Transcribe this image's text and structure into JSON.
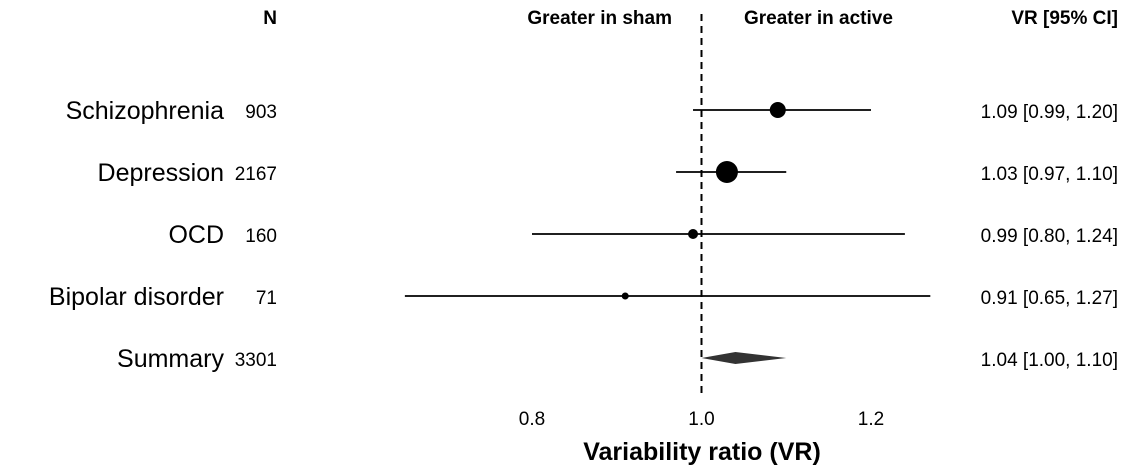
{
  "chart_data": {
    "type": "forest",
    "headers": {
      "n": "N",
      "left_direction": "Greater in sham",
      "right_direction": "Greater in active",
      "estimate": "VR [95% CI]"
    },
    "xlabel": "Variability ratio (VR)",
    "xlim": [
      0.65,
      1.27
    ],
    "xticks": [
      "0.8",
      "1.0",
      "1.2"
    ],
    "reference_line": 1.0,
    "studies": [
      {
        "label": "Schizophrenia",
        "n": "903",
        "estimate": 1.09,
        "lower": 0.99,
        "upper": 1.2,
        "text": "1.09 [0.99, 1.20]"
      },
      {
        "label": "Depression",
        "n": "2167",
        "estimate": 1.03,
        "lower": 0.97,
        "upper": 1.1,
        "text": "1.03 [0.97, 1.10]"
      },
      {
        "label": "OCD",
        "n": "160",
        "estimate": 0.99,
        "lower": 0.8,
        "upper": 1.24,
        "text": "0.99 [0.80, 1.24]"
      },
      {
        "label": "Bipolar disorder",
        "n": "71",
        "estimate": 0.91,
        "lower": 0.65,
        "upper": 1.27,
        "text": "0.91 [0.65, 1.27]"
      }
    ],
    "summary": {
      "label": "Summary",
      "n": "3301",
      "estimate": 1.04,
      "lower": 1.0,
      "upper": 1.1,
      "text": "1.04 [1.00, 1.10]"
    },
    "colors": {
      "marker": "#000000",
      "summary": "#333333",
      "line": "#000000"
    }
  }
}
